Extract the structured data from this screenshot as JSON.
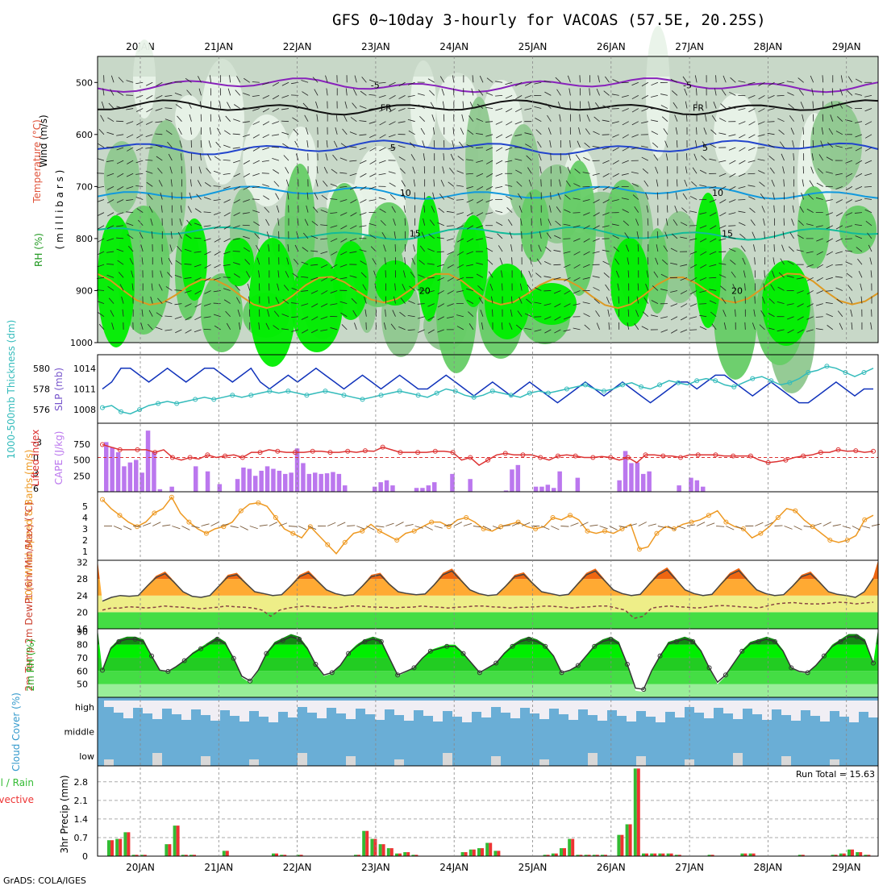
{
  "header": {
    "title": "GFS 0~10day 3-hourly for VACOAS (57.5E, 20.25S)",
    "footer": "GrADS: COLA/IGES",
    "run_total": "Run Total = 15.63"
  },
  "colors": {
    "rh_band1": "#e9f3e9",
    "rh_band2": "#c8d8c8",
    "rh_band3": "#8fc88f",
    "rh_band4": "#66cc66",
    "rh_band5": "#00ee00",
    "thickness": "#33bbbb",
    "slp": "#1133bb",
    "cape": "#bb77ee",
    "lifted_index": "#dd3333",
    "wind_speed": "#ee9922",
    "precip_total": "#33bb33",
    "precip_conv": "#ee3333",
    "cloud_blue": "#6aaed6",
    "cloud_light": "#f0eef4"
  },
  "chart_data": [
    {
      "type": "heatmap",
      "panel": "upper-air",
      "x_dates": [
        "20JAN",
        "21JAN",
        "22JAN",
        "23JAN",
        "24JAN",
        "25JAN",
        "26JAN",
        "27JAN",
        "28JAN",
        "29JAN"
      ],
      "ylabel_parts": [
        "RH (%)",
        "Temperature (°C)",
        "Wind (m/s)"
      ],
      "ylabel_unit": "( m i l l i b a r s )",
      "yticks": [
        500,
        600,
        700,
        800,
        900,
        1000
      ],
      "ylim": [
        1000,
        450
      ],
      "isotherms": [
        {
          "label": "-5",
          "pressure": 505,
          "color": "#8822bb"
        },
        {
          "label": "FR",
          "pressure": 548,
          "color": "#111111"
        },
        {
          "label": "5",
          "pressure": 625,
          "color": "#2244cc"
        },
        {
          "label": "10",
          "pressure": 712,
          "color": "#1199dd"
        },
        {
          "label": "15",
          "pressure": 790,
          "color": "#11bb99"
        },
        {
          "label": "20",
          "pressure": 900,
          "color": "#dd9922"
        }
      ]
    },
    {
      "type": "line",
      "panel": "thickness-slp",
      "ylabel_left": "1000-500mb Thickness (dm)",
      "ylabel_right": "SLP (mb)",
      "yticks_left": [
        576,
        578,
        580
      ],
      "yticks_right": [
        1008,
        1011,
        1014
      ],
      "series": [
        {
          "name": "SLP (mb)",
          "values": [
            1011,
            1012,
            1014,
            1014,
            1013,
            1012,
            1013,
            1014,
            1013,
            1012,
            1013,
            1014,
            1014,
            1013,
            1012,
            1013,
            1014,
            1012,
            1011,
            1012,
            1013,
            1012,
            1013,
            1014,
            1013,
            1012,
            1011,
            1012,
            1013,
            1012,
            1011,
            1012,
            1013,
            1012,
            1011,
            1011,
            1012,
            1013,
            1012,
            1011,
            1010,
            1011,
            1012,
            1011,
            1010,
            1011,
            1012,
            1011,
            1010,
            1009,
            1010,
            1011,
            1012,
            1011,
            1010,
            1011,
            1012,
            1011,
            1010,
            1009,
            1010,
            1011,
            1012,
            1012,
            1011,
            1012,
            1013,
            1013,
            1012,
            1011,
            1010,
            1011,
            1012,
            1011,
            1010,
            1009,
            1009,
            1010,
            1011,
            1012,
            1011,
            1010,
            1011,
            1011
          ]
        },
        {
          "name": "Thickness (dm)",
          "values": [
            576.2,
            576.4,
            575.8,
            575.6,
            576.0,
            576.4,
            576.6,
            576.8,
            576.6,
            576.8,
            577.0,
            577.2,
            577.0,
            577.2,
            577.4,
            577.2,
            577.4,
            577.6,
            577.8,
            577.6,
            577.8,
            577.6,
            577.4,
            577.6,
            577.8,
            577.6,
            577.4,
            577.2,
            577.0,
            577.2,
            577.4,
            577.6,
            577.8,
            577.6,
            577.4,
            577.2,
            577.6,
            578.0,
            577.8,
            577.4,
            577.2,
            577.4,
            577.8,
            577.6,
            577.4,
            577.2,
            577.6,
            577.8,
            577.6,
            577.8,
            578.0,
            578.2,
            578.4,
            578.0,
            577.8,
            578.0,
            578.4,
            578.6,
            578.2,
            578.0,
            578.4,
            578.8,
            578.6,
            578.4,
            578.8,
            579.0,
            578.8,
            578.4,
            578.2,
            578.6,
            579.0,
            579.2,
            578.8,
            578.4,
            578.6,
            579.0,
            579.6,
            579.8,
            580.2,
            580.0,
            579.6,
            579.2,
            579.6,
            580.0
          ]
        }
      ]
    },
    {
      "type": "bar",
      "panel": "cape-li",
      "ylabel_left": "Lifted Index",
      "ylabel_right": "CAPE (J/kg)",
      "yticks_left": [
        -3,
        0,
        3,
        6
      ],
      "yticks_right": [
        250,
        500,
        750
      ],
      "series": [
        {
          "name": "CAPE (J/kg)",
          "values": [
            780,
            700,
            620,
            400,
            460,
            500,
            300,
            960,
            620,
            40,
            0,
            80,
            0,
            0,
            0,
            400,
            0,
            320,
            0,
            120,
            0,
            0,
            200,
            380,
            360,
            250,
            330,
            400,
            360,
            330,
            280,
            300,
            680,
            450,
            280,
            300,
            280,
            290,
            310,
            280,
            100,
            0,
            0,
            0,
            0,
            80,
            150,
            180,
            100,
            0,
            0,
            0,
            60,
            60,
            100,
            150,
            0,
            0,
            280,
            0,
            0,
            200,
            0,
            0,
            0,
            0,
            0,
            20,
            350,
            420,
            0,
            0,
            80,
            80,
            110,
            60,
            320,
            0,
            0,
            220,
            0,
            0,
            0,
            0,
            0,
            0,
            180,
            640,
            450,
            460,
            280,
            320,
            0,
            0,
            0,
            0,
            100,
            0,
            220,
            180,
            80,
            0,
            0,
            0,
            0,
            0,
            0,
            0,
            0,
            0,
            0,
            0,
            0,
            0,
            0,
            0,
            0,
            0,
            0,
            0,
            0,
            0,
            0,
            0,
            0,
            0,
            0,
            0,
            0,
            0,
            0,
            0,
            0,
            0,
            0
          ]
        },
        {
          "name": "Lifted Index",
          "values": [
            -2.5,
            -2,
            -1.5,
            -1.5,
            -1.5,
            -1.5,
            -1,
            -1.5,
            0,
            0.5,
            0,
            0.3,
            -0.5,
            0,
            -0.3,
            -0.5,
            0,
            -1,
            -1,
            -1.5,
            -1.2,
            -1,
            -1,
            -1,
            -1.2,
            -1.2,
            -1,
            -1,
            -1.2,
            -1,
            -1.3,
            -1.2,
            -2,
            -1.5,
            -1,
            -1,
            -1,
            -1,
            -1.2,
            -1.2,
            -1,
            0.5,
            0,
            1.5,
            0.5,
            -0.5,
            -0.8,
            -0.5,
            -0.5,
            -0.5,
            0,
            0.5,
            -0.3,
            -0.5,
            -0.3,
            0,
            0,
            -0.2,
            0,
            0.5,
            0,
            1,
            -0.5,
            -0.5,
            -0.3,
            -0.3,
            0,
            -0.5,
            -0.5,
            -0.5,
            -0.5,
            -0.3,
            -0.3,
            -0.3,
            -0.3,
            0.5,
            1,
            0.8,
            0.5,
            0,
            -0.3,
            -0.5,
            -1,
            -1,
            -1.5,
            -1.2,
            -1.3,
            -1,
            -1.2
          ]
        }
      ]
    },
    {
      "type": "line",
      "panel": "wind10m",
      "ylabel": "10m Wind Speed & Barbs (m/s)",
      "yticks": [
        1,
        2,
        3,
        4,
        5
      ],
      "series": [
        {
          "name": "10m Wind Speed (m/s)",
          "values": [
            5.6,
            4.8,
            4.2,
            3.6,
            3.2,
            3.6,
            4.4,
            4.8,
            5.8,
            4.4,
            3.6,
            3.0,
            2.6,
            3.0,
            3.2,
            3.6,
            4.6,
            5.2,
            5.3,
            5.0,
            4.0,
            3.0,
            2.6,
            2.2,
            3.2,
            2.4,
            1.6,
            0.8,
            1.8,
            2.6,
            2.8,
            3.4,
            2.8,
            2.4,
            2.0,
            2.6,
            2.8,
            3.2,
            3.6,
            3.6,
            3.2,
            3.8,
            4.0,
            3.6,
            3.0,
            2.8,
            3.2,
            3.4,
            3.6,
            3.2,
            3.0,
            3.2,
            4.0,
            3.8,
            4.2,
            3.8,
            2.8,
            2.6,
            2.8,
            2.6,
            3.0,
            3.4,
            1.2,
            1.4,
            2.6,
            3.2,
            3.0,
            3.4,
            3.6,
            3.8,
            4.2,
            4.6,
            3.6,
            3.2,
            3.0,
            2.2,
            2.6,
            3.2,
            4.0,
            4.8,
            4.6,
            3.8,
            3.2,
            2.6,
            2.0,
            1.8,
            2.0,
            2.4,
            3.8,
            4.2
          ]
        }
      ]
    },
    {
      "type": "area",
      "panel": "temp2m",
      "ylabel": "2m Temp 2m DewPt (6hr Min/Max) (°C)",
      "yticks": [
        16,
        20,
        24,
        28,
        32
      ],
      "series": [
        {
          "name": "2m Temp (°C)",
          "values": [
            22.5,
            23.5,
            24,
            23.8,
            24,
            26.5,
            28.8,
            29.8,
            27.5,
            25,
            23.8,
            23.5,
            24,
            26.5,
            29,
            29.5,
            27.2,
            25,
            24.5,
            24,
            24.2,
            26.5,
            29,
            30,
            27.8,
            25.5,
            24.5,
            24,
            24.2,
            26.5,
            29,
            29.5,
            27,
            25,
            24.5,
            24.2,
            24.4,
            26.8,
            29.5,
            30.5,
            28,
            25.5,
            24.5,
            24,
            24.2,
            26.5,
            29,
            29.6,
            27.2,
            25,
            24.5,
            24,
            24.3,
            27,
            29.5,
            30.5,
            28,
            25.5,
            24.5,
            24,
            24.3,
            27,
            29.5,
            30.8,
            28.2,
            25.5,
            24.5,
            24,
            24.3,
            27,
            29.5,
            30.6,
            28,
            25.5,
            24.5,
            24,
            24.2,
            26.5,
            29,
            29.8,
            27.5,
            25,
            24.3,
            24,
            23.5,
            25,
            28.5
          ]
        },
        {
          "name": "2m DewPt (°C)",
          "values": [
            20.5,
            21,
            21,
            21.3,
            21.2,
            21,
            21.2,
            21.5,
            21.3,
            21.2,
            21,
            20.8,
            21,
            21.2,
            21.5,
            21.3,
            21.2,
            21,
            20.5,
            19,
            20.5,
            21,
            21.3,
            21.5,
            21.3,
            21.2,
            21,
            21.2,
            21.5,
            21.5,
            21.3,
            21.2,
            21.2,
            21,
            21.2,
            21.2,
            21.5,
            21.3,
            21.2,
            21,
            21.2,
            21.3,
            21.5,
            21.5,
            21.3,
            21.2,
            21,
            21.2,
            21.2,
            21.3,
            21.5,
            21.4,
            21.2,
            21,
            21.2,
            21.3,
            21.5,
            21.5,
            21,
            20.5,
            18.5,
            19,
            21,
            21.3,
            21.5,
            21.3,
            21.2,
            21,
            21.2,
            21.5,
            21.6,
            21.5,
            21.3,
            21.2,
            21,
            21.5,
            22,
            22.2,
            22.3,
            22.1,
            22,
            22,
            22.2,
            22.4,
            22.3,
            22,
            22.2,
            22.4
          ]
        }
      ]
    },
    {
      "type": "area",
      "panel": "rh2m",
      "ylabel": "2m RH (%)",
      "yticks": [
        50,
        60,
        70,
        80,
        90
      ],
      "series": [
        {
          "name": "2m RH (%)",
          "values": [
            60,
            78,
            84,
            86,
            86,
            84,
            72,
            60,
            59,
            63,
            68,
            74,
            78,
            82,
            86,
            82,
            70,
            55,
            51,
            60,
            74,
            82,
            85,
            88,
            86,
            78,
            65,
            56,
            58,
            64,
            74,
            80,
            84,
            86,
            84,
            70,
            56,
            59,
            62,
            70,
            76,
            78,
            80,
            80,
            74,
            66,
            58,
            62,
            66,
            74,
            80,
            84,
            86,
            84,
            80,
            72,
            58,
            60,
            64,
            72,
            80,
            84,
            86,
            82,
            65,
            45,
            44,
            60,
            72,
            82,
            84,
            86,
            84,
            76,
            62,
            50,
            56,
            66,
            76,
            82,
            84,
            86,
            84,
            76,
            62,
            59,
            58,
            64,
            72,
            80,
            84,
            88,
            88,
            84,
            66
          ]
        }
      ]
    },
    {
      "type": "area",
      "panel": "cloud",
      "ylabel": "Cloud Cover (%)",
      "levels": [
        "high",
        "middle",
        "low"
      ]
    },
    {
      "type": "bar",
      "panel": "precip",
      "ylabel": "3hr Precip (mm)",
      "legend": [
        "Total / Rain",
        "Convective"
      ],
      "yticks": [
        0,
        0.7,
        1.4,
        2.1,
        2.8
      ],
      "series": [
        {
          "name": "Total / Rain",
          "values": [
            0.6,
            0.65,
            0.9,
            0.05,
            0.05,
            0,
            0,
            0.45,
            1.15,
            0.05,
            0.05,
            0,
            0,
            0,
            0.2,
            0,
            0,
            0,
            0,
            0,
            0.1,
            0.05,
            0,
            0.05,
            0,
            0,
            0,
            0,
            0,
            0,
            0.05,
            0.95,
            0.65,
            0.45,
            0.3,
            0.1,
            0.15,
            0.05,
            0,
            0,
            0,
            0,
            0,
            0.15,
            0.25,
            0.3,
            0.5,
            0.2,
            0,
            0,
            0,
            0,
            0,
            0.05,
            0.1,
            0.3,
            0.65,
            0.05,
            0.05,
            0.05,
            0.05,
            0,
            0.8,
            1.2,
            3.3,
            0.1,
            0.1,
            0.1,
            0.1,
            0.05,
            0,
            0,
            0,
            0.05,
            0,
            0,
            0,
            0.1,
            0.1,
            0,
            0,
            0,
            0,
            0,
            0.05,
            0,
            0,
            0,
            0.05,
            0.1,
            0.25,
            0.15,
            0.05,
            0
          ]
        }
      ]
    }
  ]
}
